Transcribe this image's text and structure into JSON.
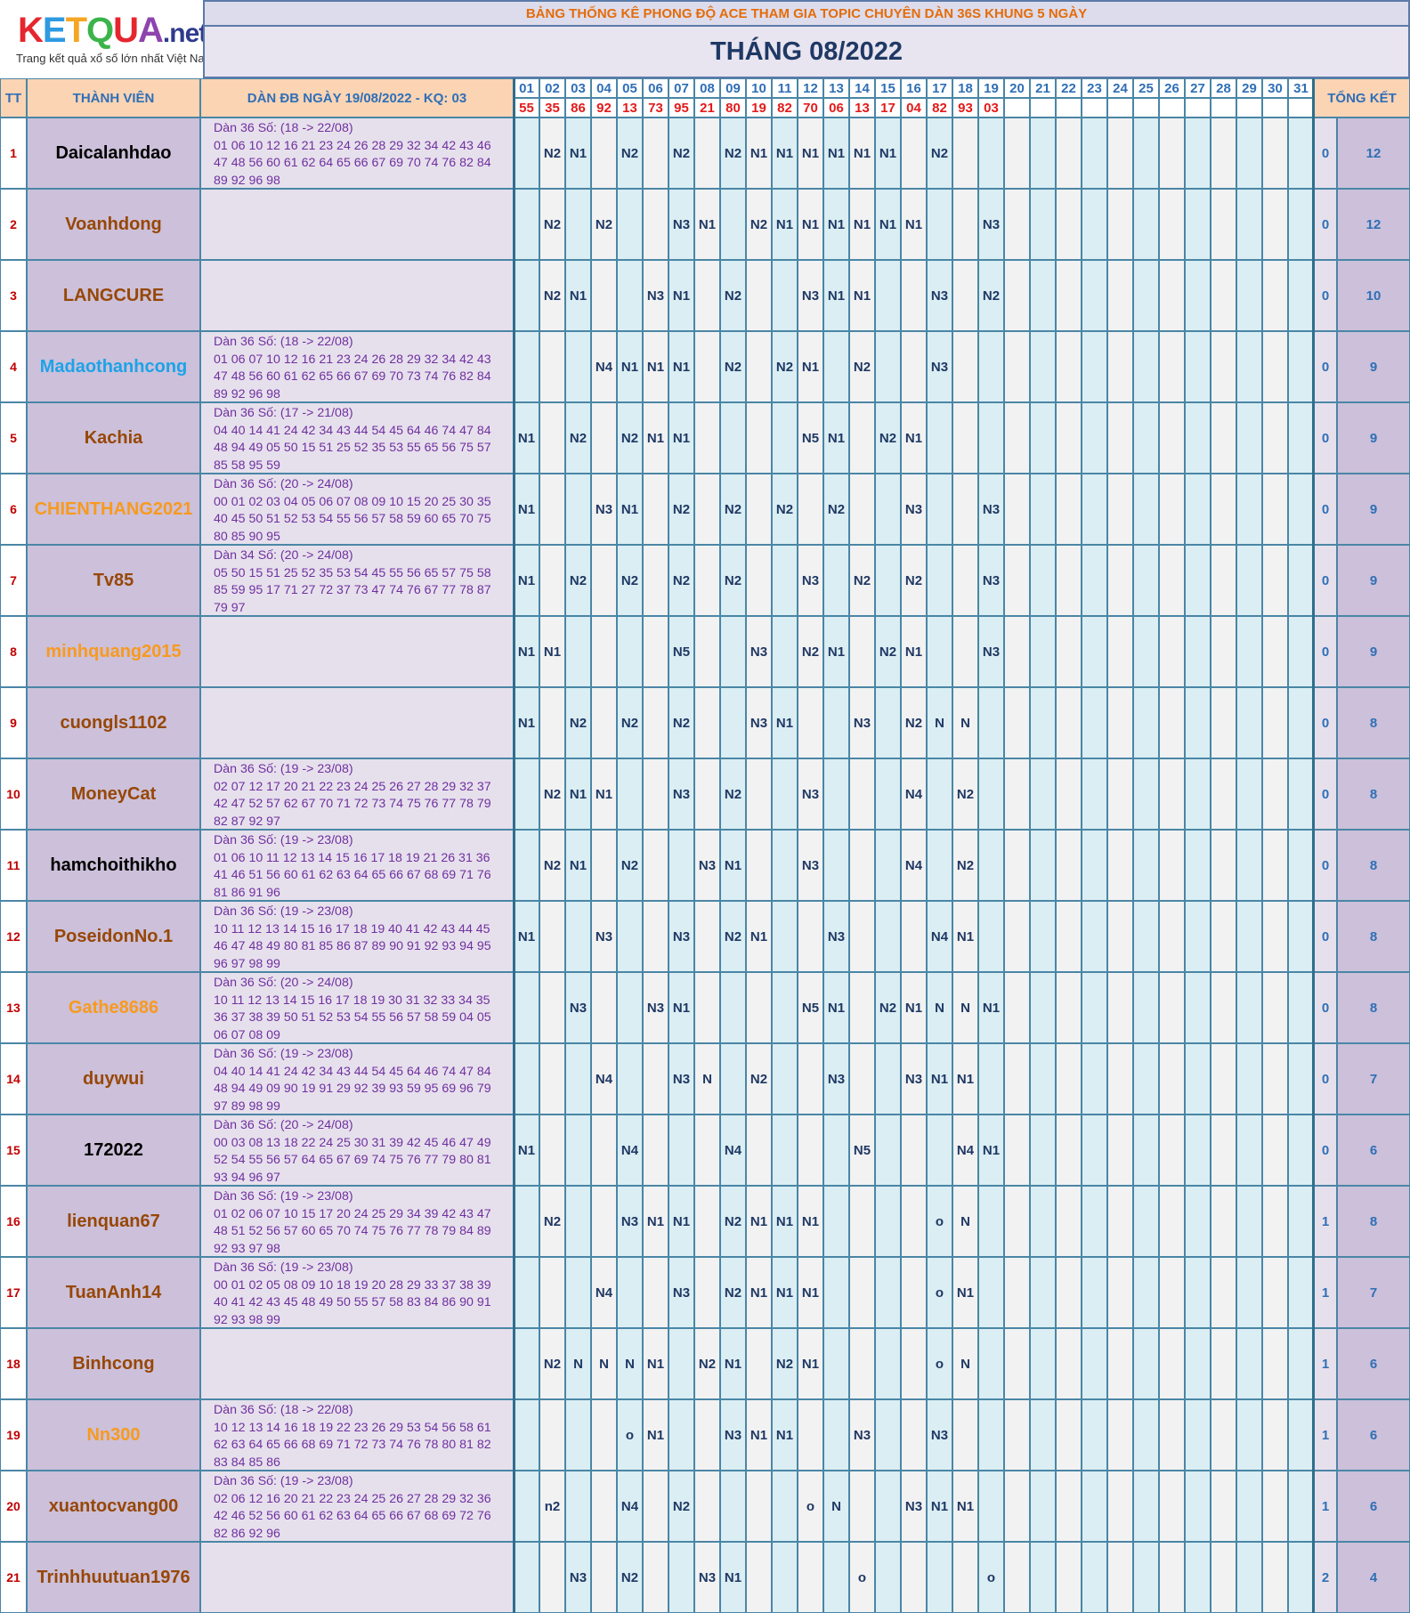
{
  "logo": {
    "letters": [
      "K",
      "E",
      "T",
      "Q",
      "U",
      "A"
    ],
    "letter_colors": [
      "#e6262e",
      "#2e9ae0",
      "#f5a623",
      "#3bb44a",
      "#e6262e",
      "#8e44ad"
    ],
    "domain": ".net",
    "tagline": "Trang kết quả xổ số lớn nhất Việt Nam"
  },
  "header": {
    "banner": "BẢNG THỐNG KÊ PHONG ĐỘ ACE THAM GIA TOPIC CHUYÊN DÀN 36S KHUNG 5 NGÀY",
    "month": "THÁNG 08/2022",
    "col_tt": "TT",
    "col_member": "THÀNH VIÊN",
    "col_dan": "DÀN ĐB NGÀY 19/08/2022 - KQ: 03",
    "col_total": "TỔNG KẾT"
  },
  "days": [
    "01",
    "02",
    "03",
    "04",
    "05",
    "06",
    "07",
    "08",
    "09",
    "10",
    "11",
    "12",
    "13",
    "14",
    "15",
    "16",
    "17",
    "18",
    "19",
    "20",
    "21",
    "22",
    "23",
    "24",
    "25",
    "26",
    "27",
    "28",
    "29",
    "30",
    "31"
  ],
  "results": [
    "55",
    "35",
    "86",
    "92",
    "13",
    "73",
    "95",
    "21",
    "80",
    "19",
    "82",
    "70",
    "06",
    "13",
    "17",
    "04",
    "82",
    "93",
    "03",
    "",
    "",
    "",
    "",
    "",
    "",
    "",
    "",
    "",
    "",
    "",
    ""
  ],
  "colors": {
    "name_brown": "#974706",
    "name_black": "#000000",
    "name_blue": "#1ca3e8",
    "name_orange": "#f79a1f"
  },
  "rows": [
    {
      "tt": "1",
      "name": "Daicalanhdao",
      "color": "#000000",
      "dan": [
        "Dàn 36 Số: (18 -> 22/08)",
        "01 06 10 12 16 21 23 24 26 28 29 32 34 42 43 46",
        "47 48 56 60 61 62 64 65 66 67 69 70 74 76 82 84",
        "89 92 96 98"
      ],
      "marks": [
        "",
        "N2",
        "N1",
        "",
        "N2",
        "",
        "N2",
        "",
        "N2",
        "N1",
        "N1",
        "N1",
        "N1",
        "N1",
        "N1",
        "",
        "N2",
        "",
        "",
        "",
        "",
        "",
        "",
        "",
        "",
        "",
        "",
        "",
        "",
        "",
        ""
      ],
      "t1": "0",
      "t2": "12"
    },
    {
      "tt": "2",
      "name": "Voanhdong",
      "color": "#974706",
      "dan": [],
      "marks": [
        "",
        "N2",
        "",
        "N2",
        "",
        "",
        "N3",
        "N1",
        "",
        "N2",
        "N1",
        "N1",
        "N1",
        "N1",
        "N1",
        "N1",
        "",
        "",
        "N3",
        "",
        "",
        "",
        "",
        "",
        "",
        "",
        "",
        "",
        "",
        "",
        ""
      ],
      "t1": "0",
      "t2": "12"
    },
    {
      "tt": "3",
      "name": "LANGCURE",
      "color": "#974706",
      "dan": [],
      "marks": [
        "",
        "N2",
        "N1",
        "",
        "",
        "N3",
        "N1",
        "",
        "N2",
        "",
        "",
        "N3",
        "N1",
        "N1",
        "",
        "",
        "N3",
        "",
        "N2",
        "",
        "",
        "",
        "",
        "",
        "",
        "",
        "",
        "",
        "",
        "",
        ""
      ],
      "t1": "0",
      "t2": "10"
    },
    {
      "tt": "4",
      "name": "Madaothanhcong",
      "color": "#1ca3e8",
      "dan": [
        "Dàn 36 Số: (18 -> 22/08)",
        "01 06 07 10 12 16 21 23 24 26 28 29 32 34 42 43",
        "47 48 56 60 61 62 65 66 67 69 70 73 74 76 82 84",
        "89 92 96 98"
      ],
      "marks": [
        "",
        "",
        "",
        "N4",
        "N1",
        "N1",
        "N1",
        "",
        "N2",
        "",
        "N2",
        "N1",
        "",
        "N2",
        "",
        "",
        "N3",
        "",
        "",
        "",
        "",
        "",
        "",
        "",
        "",
        "",
        "",
        "",
        "",
        "",
        ""
      ],
      "t1": "0",
      "t2": "9"
    },
    {
      "tt": "5",
      "name": "Kachia",
      "color": "#974706",
      "dan": [
        "Dàn 36 Số: (17 -> 21/08)",
        "04 40 14 41 24 42 34 43 44 54 45 64 46 74 47 84",
        "48 94 49 05 50 15 51 25 52 35 53 55 65 56 75 57",
        "85 58 95 59"
      ],
      "marks": [
        "N1",
        "",
        "N2",
        "",
        "N2",
        "N1",
        "N1",
        "",
        "",
        "",
        "",
        "N5",
        "N1",
        "",
        "N2",
        "N1",
        "",
        "",
        "",
        "",
        "",
        "",
        "",
        "",
        "",
        "",
        "",
        "",
        "",
        "",
        ""
      ],
      "t1": "0",
      "t2": "9"
    },
    {
      "tt": "6",
      "name": "CHIENTHANG2021",
      "color": "#f79a1f",
      "dan": [
        "Dàn 36 Số: (20 -> 24/08)",
        "00 01 02 03 04 05 06 07 08 09 10 15 20 25 30 35",
        "40 45 50 51 52 53 54 55 56 57 58 59 60 65 70 75",
        "80 85 90 95"
      ],
      "marks": [
        "N1",
        "",
        "",
        "N3",
        "N1",
        "",
        "N2",
        "",
        "N2",
        "",
        "N2",
        "",
        "N2",
        "",
        "",
        "N3",
        "",
        "",
        "N3",
        "",
        "",
        "",
        "",
        "",
        "",
        "",
        "",
        "",
        "",
        "",
        ""
      ],
      "t1": "0",
      "t2": "9"
    },
    {
      "tt": "7",
      "name": "Tv85",
      "color": "#974706",
      "dan": [
        "Dàn 34 Số: (20 -> 24/08)",
        "05 50 15 51 25 52 35 53 54 45 55 56 65 57 75 58",
        "85 59 95 17 71 27 72 37 73 47 74 76 67 77 78 87",
        "79 97"
      ],
      "marks": [
        "N1",
        "",
        "N2",
        "",
        "N2",
        "",
        "N2",
        "",
        "N2",
        "",
        "",
        "N3",
        "",
        "N2",
        "",
        "N2",
        "",
        "",
        "N3",
        "",
        "",
        "",
        "",
        "",
        "",
        "",
        "",
        "",
        "",
        "",
        ""
      ],
      "t1": "0",
      "t2": "9"
    },
    {
      "tt": "8",
      "name": "minhquang2015",
      "color": "#f79a1f",
      "dan": [],
      "marks": [
        "N1",
        "N1",
        "",
        "",
        "",
        "",
        "N5",
        "",
        "",
        "N3",
        "",
        "N2",
        "N1",
        "",
        "N2",
        "N1",
        "",
        "",
        "N3",
        "",
        "",
        "",
        "",
        "",
        "",
        "",
        "",
        "",
        "",
        "",
        ""
      ],
      "t1": "0",
      "t2": "9"
    },
    {
      "tt": "9",
      "name": "cuongls1102",
      "color": "#974706",
      "dan": [],
      "marks": [
        "N1",
        "",
        "N2",
        "",
        "N2",
        "",
        "N2",
        "",
        "",
        "N3",
        "N1",
        "",
        "",
        "N3",
        "",
        "N2",
        "N",
        "N",
        "",
        "",
        "",
        "",
        "",
        "",
        "",
        "",
        "",
        "",
        "",
        "",
        ""
      ],
      "t1": "0",
      "t2": "8"
    },
    {
      "tt": "10",
      "name": "MoneyCat",
      "color": "#974706",
      "dan": [
        "Dàn 36 Số: (19 -> 23/08)",
        "02 07 12 17 20 21 22 23 24 25 26 27 28 29 32 37",
        "42 47 52 57 62 67 70 71 72 73 74 75 76 77 78 79",
        "82 87 92 97"
      ],
      "marks": [
        "",
        "N2",
        "N1",
        "N1",
        "",
        "",
        "N3",
        "",
        "N2",
        "",
        "",
        "N3",
        "",
        "",
        "",
        "N4",
        "",
        "N2",
        "",
        "",
        "",
        "",
        "",
        "",
        "",
        "",
        "",
        "",
        "",
        "",
        ""
      ],
      "t1": "0",
      "t2": "8"
    },
    {
      "tt": "11",
      "name": "hamchoithikho",
      "color": "#000000",
      "dan": [
        "Dàn 36 Số: (19 -> 23/08)",
        "01 06 10 11 12 13 14 15 16 17 18 19 21 26 31 36",
        "41 46 51 56 60 61 62 63 64 65 66 67 68 69 71 76",
        "81 86 91 96"
      ],
      "marks": [
        "",
        "N2",
        "N1",
        "",
        "N2",
        "",
        "",
        "N3",
        "N1",
        "",
        "",
        "N3",
        "",
        "",
        "",
        "N4",
        "",
        "N2",
        "",
        "",
        "",
        "",
        "",
        "",
        "",
        "",
        "",
        "",
        "",
        "",
        ""
      ],
      "t1": "0",
      "t2": "8"
    },
    {
      "tt": "12",
      "name": "PoseidonNo.1",
      "color": "#974706",
      "dan": [
        "Dàn 36 Số: (19 -> 23/08)",
        "10 11 12 13 14 15 16 17 18 19 40 41 42 43 44 45",
        "46 47 48 49 80 81 85 86 87 89 90 91 92 93 94 95",
        "96 97 98 99"
      ],
      "marks": [
        "N1",
        "",
        "",
        "N3",
        "",
        "",
        "N3",
        "",
        "N2",
        "N1",
        "",
        "",
        "N3",
        "",
        "",
        "",
        "N4",
        "N1",
        "",
        "",
        "",
        "",
        "",
        "",
        "",
        "",
        "",
        "",
        "",
        "",
        ""
      ],
      "t1": "0",
      "t2": "8"
    },
    {
      "tt": "13",
      "name": "Gathe8686",
      "color": "#f79a1f",
      "dan": [
        "Dàn 36 Số: (20 -> 24/08)",
        "10 11 12 13 14 15 16 17 18 19 30 31 32 33 34 35",
        "36 37 38 39 50 51 52 53 54 55 56 57 58 59 04 05",
        "06 07 08 09"
      ],
      "marks": [
        "",
        "",
        "N3",
        "",
        "",
        "N3",
        "N1",
        "",
        "",
        "",
        "",
        "N5",
        "N1",
        "",
        "N2",
        "N1",
        "N",
        "N",
        "N1",
        "",
        "",
        "",
        "",
        "",
        "",
        "",
        "",
        "",
        "",
        "",
        ""
      ],
      "t1": "0",
      "t2": "8"
    },
    {
      "tt": "14",
      "name": "duywui",
      "color": "#974706",
      "dan": [
        "Dàn 36 Số: (19 -> 23/08)",
        "04 40 14 41 24 42 34 43 44 54 45 64 46 74 47 84",
        "48 94 49 09 90 19 91 29 92 39 93 59 95 69 96 79",
        "97 89 98 99"
      ],
      "marks": [
        "",
        "",
        "",
        "N4",
        "",
        "",
        "N3",
        "N",
        "",
        "N2",
        "",
        "",
        "N3",
        "",
        "",
        "N3",
        "N1",
        "N1",
        "",
        "",
        "",
        "",
        "",
        "",
        "",
        "",
        "",
        "",
        "",
        "",
        ""
      ],
      "t1": "0",
      "t2": "7"
    },
    {
      "tt": "15",
      "name": "172022",
      "color": "#000000",
      "dan": [
        "Dàn 36 Số: (20 -> 24/08)",
        "00 03 08 13 18 22 24 25 30 31 39 42 45 46 47 49",
        "52 54 55 56 57 64 65 67 69 74 75 76 77 79 80 81",
        "93 94 96 97"
      ],
      "marks": [
        "N1",
        "",
        "",
        "",
        "N4",
        "",
        "",
        "",
        "N4",
        "",
        "",
        "",
        "",
        "N5",
        "",
        "",
        "",
        "N4",
        "N1",
        "",
        "",
        "",
        "",
        "",
        "",
        "",
        "",
        "",
        "",
        "",
        ""
      ],
      "t1": "0",
      "t2": "6"
    },
    {
      "tt": "16",
      "name": "lienquan67",
      "color": "#974706",
      "dan": [
        "Dàn 36 Số: (19 -> 23/08)",
        "01 02 06 07 10 15 17 20 24 25 29 34 39 42 43 47",
        "48 51 52 56 57 60 65 70 74 75 76 77 78 79 84 89",
        "92 93 97 98"
      ],
      "marks": [
        "",
        "N2",
        "",
        "",
        "N3",
        "N1",
        "N1",
        "",
        "N2",
        "N1",
        "N1",
        "N1",
        "",
        "",
        "",
        "",
        "o",
        "N",
        "",
        "",
        "",
        "",
        "",
        "",
        "",
        "",
        "",
        "",
        "",
        "",
        ""
      ],
      "t1": "1",
      "t2": "8"
    },
    {
      "tt": "17",
      "name": "TuanAnh14",
      "color": "#974706",
      "dan": [
        "Dàn 36 Số: (19 -> 23/08)",
        "00 01 02 05 08 09 10 18 19 20 28 29 33 37 38 39",
        "40 41 42 43 45 48 49 50 55 57 58 83 84 86 90 91",
        "92 93 98 99"
      ],
      "marks": [
        "",
        "",
        "",
        "N4",
        "",
        "",
        "N3",
        "",
        "N2",
        "N1",
        "N1",
        "N1",
        "",
        "",
        "",
        "",
        "o",
        "N1",
        "",
        "",
        "",
        "",
        "",
        "",
        "",
        "",
        "",
        "",
        "",
        "",
        ""
      ],
      "t1": "1",
      "t2": "7"
    },
    {
      "tt": "18",
      "name": "Binhcong",
      "color": "#974706",
      "dan": [],
      "marks": [
        "",
        "N2",
        "N",
        "N",
        "N",
        "N1",
        "",
        "N2",
        "N1",
        "",
        "N2",
        "N1",
        "",
        "",
        "",
        "",
        "o",
        "N",
        "",
        "",
        "",
        "",
        "",
        "",
        "",
        "",
        "",
        "",
        "",
        "",
        ""
      ],
      "t1": "1",
      "t2": "6"
    },
    {
      "tt": "19",
      "name": "Nn300",
      "color": "#f79a1f",
      "dan": [
        "Dàn 36 Số: (18 -> 22/08)",
        "10 12 13 14 16 18 19 22 23 26 29 53 54 56 58 61",
        "62 63 64 65 66 68 69 71 72 73 74 76 78 80 81 82",
        "83 84 85 86"
      ],
      "marks": [
        "",
        "",
        "",
        "",
        "o",
        "N1",
        "",
        "",
        "N3",
        "N1",
        "N1",
        "",
        "",
        "N3",
        "",
        "",
        "N3",
        "",
        "",
        "",
        "",
        "",
        "",
        "",
        "",
        "",
        "",
        "",
        "",
        "",
        ""
      ],
      "t1": "1",
      "t2": "6"
    },
    {
      "tt": "20",
      "name": "xuantocvang00",
      "color": "#974706",
      "dan": [
        "Dàn 36 Số: (19 -> 23/08)",
        "02 06 12 16 20 21 22 23 24 25 26 27 28 29 32 36",
        "42 46 52 56 60 61 62 63 64 65 66 67 68 69 72 76",
        "82 86 92 96"
      ],
      "marks": [
        "",
        "n2",
        "",
        "",
        "N4",
        "",
        "N2",
        "",
        "",
        "",
        "",
        "o",
        "N",
        "",
        "",
        "N3",
        "N1",
        "N1",
        "",
        "",
        "",
        "",
        "",
        "",
        "",
        "",
        "",
        "",
        "",
        "",
        ""
      ],
      "t1": "1",
      "t2": "6"
    },
    {
      "tt": "21",
      "name": "Trinhhuutuan1976",
      "color": "#974706",
      "dan": [],
      "marks": [
        "",
        "",
        "N3",
        "",
        "N2",
        "",
        "",
        "N3",
        "N1",
        "",
        "",
        "",
        "",
        "o",
        "",
        "",
        "",
        "",
        "o",
        "",
        "",
        "",
        "",
        "",
        "",
        "",
        "",
        "",
        "",
        "",
        ""
      ],
      "t1": "2",
      "t2": "4"
    }
  ]
}
